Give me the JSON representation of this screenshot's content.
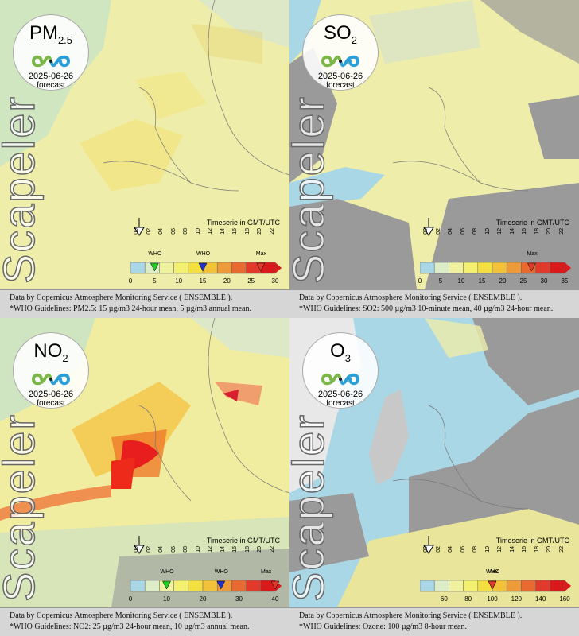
{
  "brand": "Scapeler",
  "colors": {
    "sea": "#a9d7e6",
    "land_nodata": "#9a9a9a",
    "base_land": "#eeeeaa"
  },
  "panels": [
    {
      "pollutant_main": "PM",
      "pollutant_sub": "2.5",
      "date": "2025-06-26",
      "forecast": "forecast",
      "timeserie_label": "Timeserie in GMT/UTC",
      "time_ticks": [
        "00",
        "02",
        "04",
        "06",
        "08",
        "10",
        "12",
        "14",
        "16",
        "18",
        "20",
        "22"
      ],
      "scale_ticks": [
        "0",
        "5",
        "10",
        "15",
        "20",
        "25",
        "30"
      ],
      "scale_max": 30,
      "who_markers": [
        {
          "label": "WHO",
          "value": 5,
          "color": "#22cc22"
        },
        {
          "label": "WHO",
          "value": 15,
          "color": "#2233cc"
        }
      ],
      "max_label": "Max",
      "max_value": 27,
      "footer_line1": "Data by Copernicus Atmosphere Monitoring Service ( ENSEMBLE ).",
      "footer_line2": "*WHO Guidelines: PM2.5: 15 µg/m3 24-hour mean, 5 µg/m3 annual mean."
    },
    {
      "pollutant_main": "SO",
      "pollutant_sub": "2",
      "date": "2025-06-26",
      "forecast": "forecast",
      "timeserie_label": "Timeserie in GMT/UTC",
      "time_ticks": [
        "00",
        "02",
        "04",
        "06",
        "08",
        "10",
        "12",
        "14",
        "16",
        "18",
        "20",
        "22"
      ],
      "scale_ticks": [
        "0",
        "5",
        "10",
        "15",
        "20",
        "25",
        "30",
        "35"
      ],
      "scale_max": 35,
      "who_markers": [],
      "max_label": "Max",
      "max_value": 27,
      "footer_line1": "Data by Copernicus Atmosphere Monitoring Service ( ENSEMBLE ).",
      "footer_line2": "*WHO Guidelines: SO2: 500 µg/m3 10-minute mean, 40 µg/m3 24-hour mean."
    },
    {
      "pollutant_main": "NO",
      "pollutant_sub": "2",
      "date": "2025-06-26",
      "forecast": "forecast",
      "timeserie_label": "Timeserie in GMT/UTC",
      "time_ticks": [
        "00",
        "02",
        "04",
        "06",
        "08",
        "10",
        "12",
        "14",
        "16",
        "18",
        "20",
        "22"
      ],
      "scale_ticks": [
        "0",
        "10",
        "20",
        "30",
        "40"
      ],
      "scale_max": 40,
      "who_markers": [
        {
          "label": "WHO",
          "value": 10,
          "color": "#22cc22"
        },
        {
          "label": "WHO",
          "value": 25,
          "color": "#2233cc"
        }
      ],
      "max_label": "Max",
      "max_value": 40,
      "footer_line1": "Data by Copernicus Atmosphere Monitoring Service ( ENSEMBLE ).",
      "footer_line2": "*WHO Guidelines: NO2: 25 µg/m3 24-hour mean, 10 µg/m3 annual mean."
    },
    {
      "pollutant_main": "O",
      "pollutant_sub": "3",
      "date": "2025-06-26",
      "forecast": "forecast",
      "timeserie_label": "Timeserie in GMT/UTC",
      "time_ticks": [
        "00",
        "02",
        "04",
        "06",
        "08",
        "10",
        "12",
        "14",
        "16",
        "18",
        "20",
        "22"
      ],
      "scale_ticks": [
        "60",
        "80",
        "100",
        "120",
        "140",
        "160"
      ],
      "scale_min": 40,
      "scale_max": 160,
      "who_markers": [
        {
          "label": "WHO",
          "value": 100,
          "color": "#cc2222"
        }
      ],
      "max_label": "Max",
      "max_value": 100,
      "footer_line1": "Data by Copernicus Atmosphere Monitoring Service ( ENSEMBLE ).",
      "footer_line2": "*WHO Guidelines: Ozone: 100 µg/m3 8-hour mean."
    }
  ]
}
